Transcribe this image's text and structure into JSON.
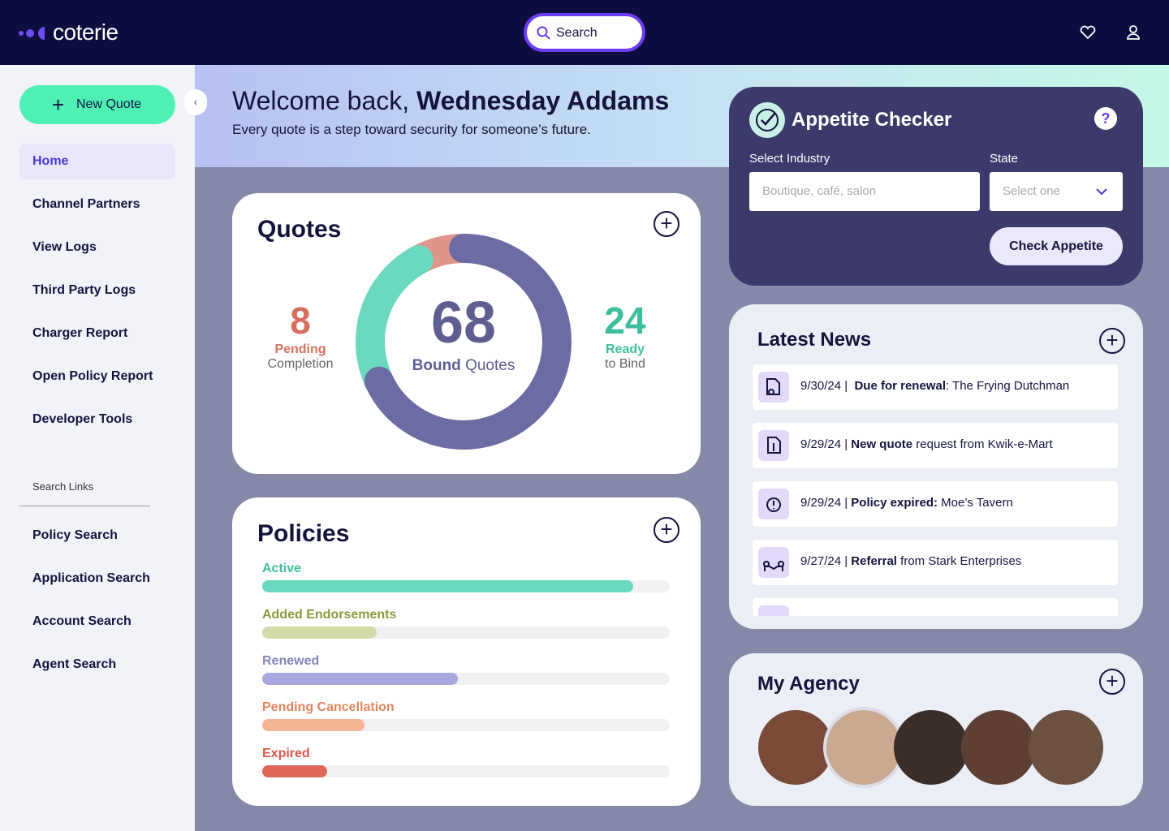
{
  "header": {
    "logo": "coterie",
    "search": "Search"
  },
  "sidebar": {
    "new_quote": "New Quote",
    "nav": [
      "Home",
      "Channel Partners",
      "View Logs",
      "Third Party Logs",
      "Charger Report",
      "Open Policy Report",
      "Developer Tools"
    ],
    "section_label": "Search Links",
    "search_links": [
      "Policy Search",
      "Application Search",
      "Account Search",
      "Agent Search"
    ]
  },
  "banner": {
    "greeting": "Welcome back, ",
    "name": "Wednesday Addams",
    "subtitle": "Every quote is a step toward security for someone’s future."
  },
  "quotes": {
    "title": "Quotes",
    "pending": {
      "value": 8,
      "strong": "Pending",
      "label": "Completion",
      "color": "#e0958a"
    },
    "bound": {
      "value": 68,
      "strong": "Bound",
      "label": " Quotes",
      "color": "#6c6ba3"
    },
    "ready": {
      "value": 24,
      "strong": "Ready",
      "label": "to Bind",
      "color": "#6bd9c0"
    }
  },
  "policies": {
    "title": "Policies",
    "bars": [
      {
        "label": "Active",
        "value": 91,
        "color": "#6bd9c0",
        "text_color": "#3dbf9e"
      },
      {
        "label": "Added Endorsements",
        "value": 28,
        "color": "#d2dba8",
        "text_color": "#8a9a3c"
      },
      {
        "label": "Renewed",
        "value": 48,
        "color": "#a9a8dc",
        "text_color": "#8584bd"
      },
      {
        "label": "Pending Cancellation",
        "value": 25,
        "color": "#f4b393",
        "text_color": "#e0875c"
      },
      {
        "label": "Expired",
        "value": 16,
        "color": "#e0665a",
        "text_color": "#d9574b"
      }
    ]
  },
  "appetite": {
    "title": "Appetite Checker",
    "help": "?",
    "industry_label": "Select Industry",
    "industry_placeholder": "Boutique, café, salon",
    "state_label": "State",
    "state_placeholder": "Select one",
    "button": "Check Appetite"
  },
  "news": {
    "title": "Latest News",
    "items": [
      {
        "date": "9/30/24 |  ",
        "bold": "Due for renewal",
        "text": ": The Frying Dutchman"
      },
      {
        "date": "9/29/24 | ",
        "bold": "New quote",
        "text": " request from Kwik-e-Mart"
      },
      {
        "date": "9/29/24 | ",
        "bold": "Policy expired:",
        "text": " Moe’s Tavern"
      },
      {
        "date": "9/27/24 | ",
        "bold": "Referral",
        "text": " from Stark Enterprises"
      }
    ]
  },
  "agency": {
    "title": "My Agency"
  }
}
